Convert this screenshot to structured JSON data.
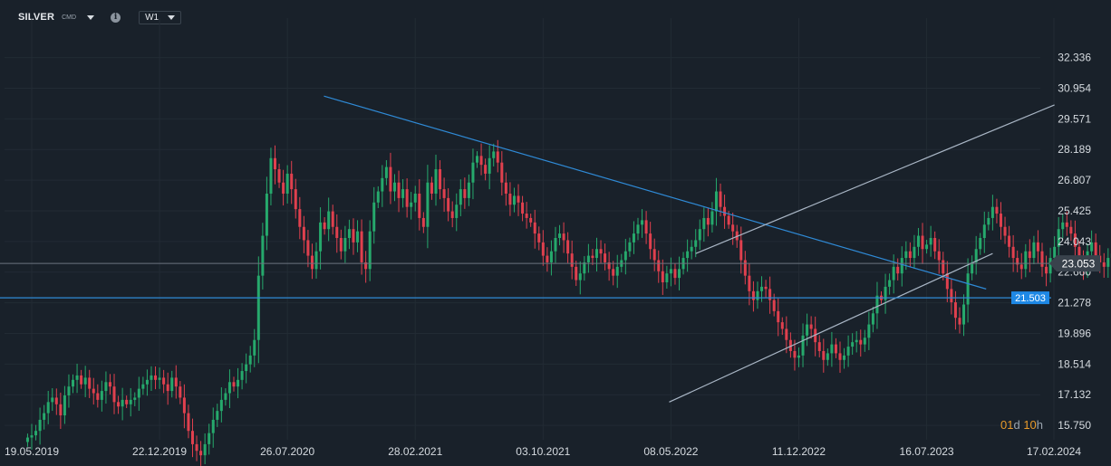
{
  "toolbar": {
    "symbol": "SILVER",
    "exchange": "CMD",
    "info_glyph": "i",
    "timeframe": "W1"
  },
  "countdown": {
    "days": "01",
    "days_unit": "d",
    "hours": "10",
    "hours_unit": "h"
  },
  "colors": {
    "background": "#19212a",
    "bull": "#26a96c",
    "bear": "#e0404e",
    "trendline": "#2f8ad6",
    "channel": "#a9b6c5",
    "price_line": "#6c7580",
    "level_label": "#1e88e5"
  },
  "chart_data": {
    "type": "candlestick",
    "instrument": "SILVER",
    "timeframe": "W1",
    "ylim": [
      15.1,
      33.3
    ],
    "y_ticks": [
      32.336,
      30.954,
      29.571,
      28.189,
      26.807,
      25.425,
      24.043,
      22.66,
      21.278,
      19.896,
      18.514,
      17.132,
      15.75
    ],
    "y_tick_labels": [
      "32.336",
      "30.954",
      "29.571",
      "28.189",
      "26.807",
      "25.425",
      "24.043",
      "22.660",
      "21.278",
      "19.896",
      "18.514",
      "17.132",
      "15.750"
    ],
    "x_tick_labels": [
      "19.05.2019",
      "22.12.2019",
      "26.07.2020",
      "28.02.2021",
      "03.10.2021",
      "08.05.2022",
      "11.12.2022",
      "16.07.2023",
      "17.02.2024"
    ],
    "current_price": 23.053,
    "current_price_label": "23.053",
    "horizontal_level": 21.503,
    "horizontal_level_label": "21.503",
    "series_close": [
      15.2,
      15.3,
      15.5,
      16.0,
      16.3,
      16.8,
      17.0,
      16.7,
      16.2,
      17.1,
      17.5,
      17.8,
      18.0,
      17.6,
      17.9,
      17.4,
      17.2,
      16.9,
      17.3,
      17.7,
      17.5,
      16.8,
      16.6,
      16.9,
      16.7,
      16.9,
      17.0,
      17.4,
      17.6,
      17.8,
      18.0,
      17.8,
      17.9,
      17.6,
      17.3,
      17.9,
      17.5,
      17.0,
      16.3,
      15.5,
      14.9,
      14.6,
      14.4,
      14.9,
      15.4,
      16.0,
      16.4,
      16.9,
      17.2,
      17.7,
      17.5,
      17.8,
      18.2,
      18.5,
      18.9,
      19.6,
      22.5,
      24.3,
      26.2,
      27.8,
      27.3,
      26.7,
      26.2,
      27.1,
      26.4,
      25.5,
      24.7,
      24.1,
      23.4,
      22.8,
      23.6,
      24.9,
      24.6,
      25.4,
      24.7,
      24.2,
      23.6,
      24.2,
      24.6,
      24.0,
      24.5,
      23.1,
      22.8,
      24.5,
      25.8,
      26.3,
      26.9,
      27.4,
      26.3,
      26.7,
      26.0,
      26.4,
      25.6,
      25.8,
      26.2,
      25.1,
      24.7,
      26.7,
      26.2,
      27.3,
      26.4,
      26.0,
      25.4,
      25.1,
      25.7,
      26.4,
      26.0,
      26.7,
      27.6,
      27.9,
      27.5,
      27.1,
      27.8,
      28.1,
      27.6,
      26.7,
      26.2,
      25.7,
      26.1,
      25.8,
      25.3,
      25.1,
      24.9,
      24.4,
      24.0,
      23.4,
      23.1,
      23.6,
      24.2,
      24.4,
      24.1,
      23.5,
      22.9,
      22.3,
      22.6,
      23.1,
      23.4,
      23.3,
      23.7,
      23.5,
      23.1,
      22.8,
      22.5,
      22.9,
      23.2,
      23.6,
      24.0,
      24.4,
      24.8,
      25.0,
      24.4,
      23.7,
      23.2,
      22.7,
      22.2,
      22.6,
      22.8,
      22.4,
      22.8,
      23.3,
      23.6,
      23.8,
      24.1,
      24.6,
      25.1,
      24.8,
      25.4,
      26.3,
      25.6,
      25.2,
      24.8,
      24.5,
      24.1,
      23.2,
      22.5,
      21.8,
      21.4,
      21.8,
      22.0,
      21.9,
      21.4,
      20.9,
      20.4,
      20.1,
      19.6,
      19.1,
      18.8,
      18.9,
      19.8,
      20.3,
      20.1,
      19.5,
      19.1,
      18.7,
      19.0,
      19.4,
      19.0,
      18.7,
      18.9,
      19.3,
      19.5,
      19.6,
      19.4,
      19.7,
      20.3,
      20.8,
      21.6,
      21.4,
      22.0,
      22.3,
      22.9,
      22.6,
      23.3,
      23.6,
      23.3,
      23.8,
      24.3,
      23.7,
      23.9,
      24.2,
      23.6,
      23.2,
      22.6,
      21.9,
      21.3,
      20.6,
      20.3,
      21.2,
      22.6,
      23.1,
      23.7,
      24.2,
      24.8,
      25.1,
      25.6,
      25.3,
      24.7,
      24.3,
      23.8,
      23.3,
      23.0,
      22.8,
      23.6,
      23.3,
      24.0,
      23.6,
      22.9,
      22.6,
      23.3,
      23.8,
      24.6,
      24.9,
      24.7,
      24.4,
      23.8,
      23.1,
      22.8,
      23.6,
      24.0,
      23.4,
      23.1,
      22.9,
      23.3,
      23.5,
      23.0,
      23.053
    ],
    "trendlines": [
      {
        "kind": "descending-resistance",
        "from": [
          "26.09.2020",
          30.6
        ],
        "to": [
          "25.10.2023",
          21.9
        ]
      },
      {
        "kind": "ascending-channel-upper",
        "from": [
          "19.06.2022",
          23.5
        ],
        "to": [
          "18.02.2024",
          30.2
        ]
      },
      {
        "kind": "ascending-channel-lower",
        "from": [
          "05.05.2022",
          16.8
        ],
        "to": [
          "05.11.2023",
          23.5
        ]
      }
    ]
  }
}
